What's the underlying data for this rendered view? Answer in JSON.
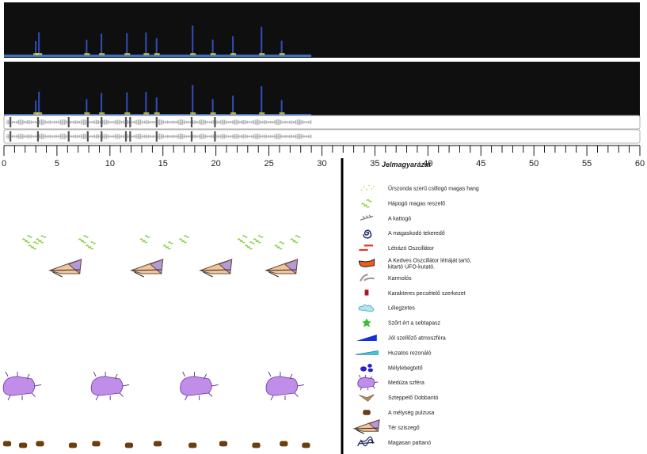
{
  "timeline": {
    "axis_min": 0,
    "axis_max": 60,
    "tick_labels": [
      "0",
      "5",
      "10",
      "15",
      "20",
      "25",
      "30",
      "35",
      "40",
      "45",
      "50",
      "55",
      "60"
    ],
    "minor_tick_step": 1,
    "recording_end": 29
  },
  "spectrogram": {
    "background_color": "#0f0f10",
    "burst_color": "#3a58d8",
    "highlight_color": "#e6e040",
    "bursts": [
      3,
      3.3,
      7.8,
      9.2,
      11.6,
      13.4,
      14.4,
      17.8,
      19.7,
      21.6,
      24.3,
      26.2
    ]
  },
  "waveform": {
    "color": "#555555",
    "events": [
      0.6,
      3.2,
      6.1,
      7.9,
      9.2,
      11.5,
      11.9,
      14.4,
      17.7,
      19.9
    ]
  },
  "legend": {
    "title": "Jelmagyarázat",
    "items": [
      {
        "icon": "sparkle-icon",
        "label": "Űrszonda szerű csillogó magas hang"
      },
      {
        "icon": "green-squiggle-icon",
        "label": "Hápogó magas reszelő"
      },
      {
        "icon": "rattle-icon",
        "label": "A kattogó"
      },
      {
        "icon": "spiral-icon",
        "label": "A magaskodó tekeredő"
      },
      {
        "icon": "red-dash-icon",
        "label": "Létrázó Oszcillátor"
      },
      {
        "icon": "orange-blob-icon",
        "label": "A Kedves Oszcillátor létráját tartó,",
        "label2": "kitartó UFO-kutató."
      },
      {
        "icon": "claw-icon",
        "label": "Karmolós"
      },
      {
        "icon": "red-rect-icon",
        "label": "Karakteres pecsételő szerkezet"
      },
      {
        "icon": "cloud-icon",
        "label": "Lélegzetes"
      },
      {
        "icon": "green-star-icon",
        "label": "Szőrt ért a sebtapasz"
      },
      {
        "icon": "blue-wedge-icon",
        "label": "Jól szellőző atmoszféra"
      },
      {
        "icon": "cyan-wedge-icon",
        "label": "Huzatos rezonáló"
      },
      {
        "icon": "blue-blobs-icon",
        "label": "Mélylebegtető"
      },
      {
        "icon": "jellyfish-icon",
        "label": "Medúza szféra"
      },
      {
        "icon": "brown-bird-icon",
        "label": "Szteppelő Dobbantó"
      },
      {
        "icon": "brown-pill-icon",
        "label": "A mélység pulzusa"
      },
      {
        "icon": "kite-icon",
        "label": "Tér sziszegő"
      },
      {
        "icon": "scribble-icon",
        "label": "Magasan pattanó"
      }
    ]
  },
  "events": {
    "green_squiggles": [
      [
        2.2,
        2.8,
        3.5
      ],
      [
        7.5,
        8.2
      ],
      [
        13.3,
        15.5,
        17.0
      ],
      [
        22.5,
        23.2,
        24.0,
        26.0
      ],
      [
        27.5
      ]
    ],
    "kites": [
      5.8,
      13.5,
      20.0,
      26.2
    ],
    "jellyfish": [
      1.5,
      9.8,
      18.2,
      26.3
    ],
    "pulses": [
      0.3,
      1.8,
      3.4,
      6.5,
      8.7,
      11.8,
      14.5,
      17.8,
      20.7,
      23.8,
      26.4,
      28.5
    ]
  },
  "colors": {
    "green": "#8fd14a",
    "kite_dark": "#6a4a36",
    "kite_light": "#f2c69b",
    "kite_accent": "#b59ad8",
    "jelly": "#c08ee8",
    "jelly_outline": "#6b3aa5",
    "pulse": "#6b3d0f"
  }
}
